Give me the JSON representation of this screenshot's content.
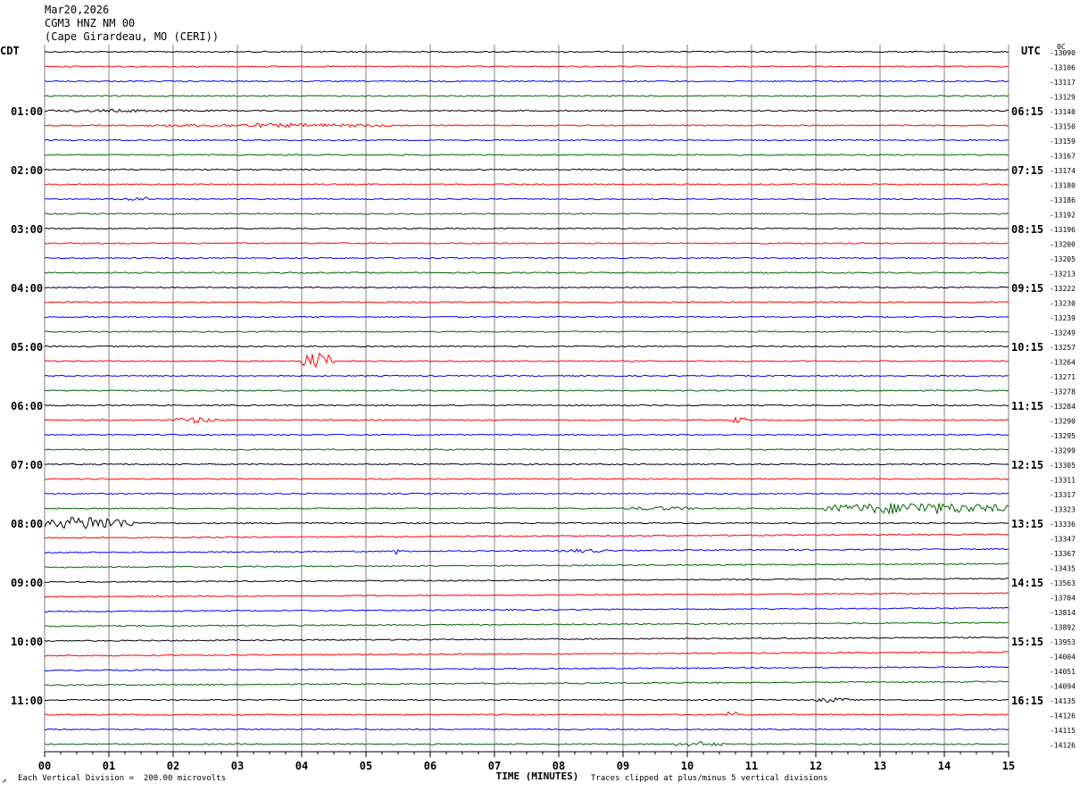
{
  "header": {
    "date": "Mar20,2026",
    "station": "CGM3 HNZ NM 00",
    "location": "(Cape Girardeau, MO (CERI))"
  },
  "left_axis_label": "CDT",
  "right_axis_label": "UTC",
  "right_top_label": "0C",
  "footer": {
    "scale_note": "Each Vertical Division =  200.00 microvolts",
    "clip_note": "Traces clipped at plus/minus 5 vertical divisions"
  },
  "colors": {
    "black": "#000000",
    "red": "#ff0000",
    "blue": "#0000ff",
    "green": "#006400",
    "grid": "#808080"
  },
  "chart_data": {
    "type": "line",
    "xlabel": "TIME (MINUTES)",
    "x_ticks": [
      "00",
      "01",
      "02",
      "03",
      "04",
      "05",
      "06",
      "07",
      "08",
      "09",
      "10",
      "11",
      "12",
      "13",
      "14",
      "15"
    ],
    "xlim": [
      0,
      15
    ],
    "left_time_labels": [
      "01:00",
      "02:00",
      "03:00",
      "04:00",
      "05:00",
      "06:00",
      "07:00",
      "08:00",
      "09:00",
      "10:00",
      "11:00"
    ],
    "right_time_labels": [
      "06:15",
      "07:15",
      "08:15",
      "09:15",
      "10:15",
      "11:15",
      "12:15",
      "13:15",
      "14:15",
      "15:15",
      "16:15"
    ],
    "trace_offsets": [
      "-13090",
      "-13106",
      "-13117",
      "-13129",
      "-13140",
      "-13150",
      "-13159",
      "-13167",
      "-13174",
      "-13180",
      "-13186",
      "-13192",
      "-13196",
      "-13200",
      "-13205",
      "-13213",
      "-13222",
      "-13230",
      "-13239",
      "-13249",
      "-13257",
      "-13264",
      "-13271",
      "-13278",
      "-13284",
      "-13290",
      "-13295",
      "-13299",
      "-13305",
      "-13311",
      "-13317",
      "-13323",
      "-13336",
      "-13347",
      "-13367",
      "-13435",
      "-13563",
      "-13704",
      "-13814",
      "-13892",
      "-13953",
      "-14004",
      "-14051",
      "-14094",
      "-14135",
      "-14126",
      "-14115",
      "-14126"
    ],
    "trace_colors": [
      "black",
      "red",
      "blue",
      "green"
    ],
    "events": [
      {
        "trace": 4,
        "x_min": [
          0,
          2.6
        ],
        "amplitude": 0.6
      },
      {
        "trace": 5,
        "x_min": [
          1.6,
          5.6
        ],
        "amplitude": 0.8
      },
      {
        "trace": 10,
        "x_min": [
          1.3,
          1.6
        ],
        "amplitude": 1.5
      },
      {
        "trace": 21,
        "x_min": [
          4.0,
          4.5
        ],
        "amplitude": 3.5
      },
      {
        "trace": 25,
        "x_min": [
          2.0,
          2.7
        ],
        "amplitude": 1.2
      },
      {
        "trace": 25,
        "x_min": [
          10.7,
          10.9
        ],
        "amplitude": 1.5
      },
      {
        "trace": 31,
        "x_min": [
          12.1,
          15.0
        ],
        "amplitude": 2.4
      },
      {
        "trace": 31,
        "x_min": [
          9.0,
          10.2
        ],
        "amplitude": 0.8
      },
      {
        "trace": 32,
        "x_min": [
          0,
          1.4
        ],
        "amplitude": 2.8
      },
      {
        "trace": 34,
        "x_min": [
          5.4,
          5.6
        ],
        "amplitude": 1.3
      },
      {
        "trace": 34,
        "x_min": [
          8.0,
          8.8
        ],
        "amplitude": 0.8
      },
      {
        "trace": 44,
        "x_min": [
          12.0,
          12.5
        ],
        "amplitude": 1.0
      },
      {
        "trace": 45,
        "x_min": [
          10.6,
          10.8
        ],
        "amplitude": 1.5
      },
      {
        "trace": 47,
        "x_min": [
          9.8,
          10.6
        ],
        "amplitude": 1.0
      }
    ]
  }
}
